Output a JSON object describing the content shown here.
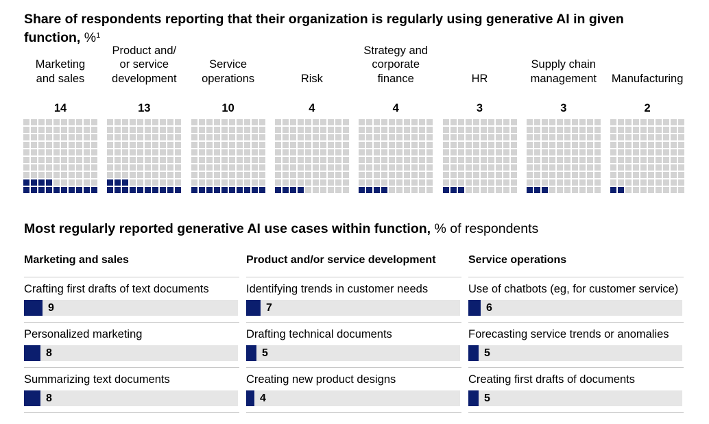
{
  "title": {
    "text": "Share of respondents reporting that their organization is regularly using generative AI in given function,",
    "unit": "%",
    "footnote": "1"
  },
  "colors": {
    "filled": "#0b1e6e",
    "empty": "#d3d3d3",
    "track": "#e6e6e6"
  },
  "chart_data": [
    {
      "type": "waffle",
      "grid": [
        10,
        10
      ],
      "categories": [
        "Marketing\nand sales",
        "Product and/\nor service\ndevelopment",
        "Service\noperations",
        "Risk",
        "Strategy and\ncorporate\nfinance",
        "HR",
        "Supply chain\nmanagement",
        "Manufacturing"
      ],
      "values": [
        14,
        13,
        10,
        4,
        4,
        3,
        3,
        2
      ]
    },
    {
      "type": "bar",
      "title": "Most regularly reported generative AI use cases within function,",
      "unit": "% of respondents",
      "panels": [
        {
          "heading": "Marketing and sales",
          "items": [
            {
              "label": "Crafting first drafts of text documents",
              "value": 9
            },
            {
              "label": "Personalized marketing",
              "value": 8
            },
            {
              "label": "Summarizing text documents",
              "value": 8
            }
          ]
        },
        {
          "heading": "Product and/or service development",
          "items": [
            {
              "label": "Identifying trends in customer needs",
              "value": 7
            },
            {
              "label": "Drafting technical documents",
              "value": 5
            },
            {
              "label": "Creating new product designs",
              "value": 4
            }
          ]
        },
        {
          "heading": "Service operations",
          "items": [
            {
              "label": "Use of chatbots (eg, for customer service)",
              "value": 6
            },
            {
              "label": "Forecasting service trends or anomalies",
              "value": 5
            },
            {
              "label": "Creating first drafts of documents",
              "value": 5
            }
          ]
        }
      ]
    }
  ]
}
